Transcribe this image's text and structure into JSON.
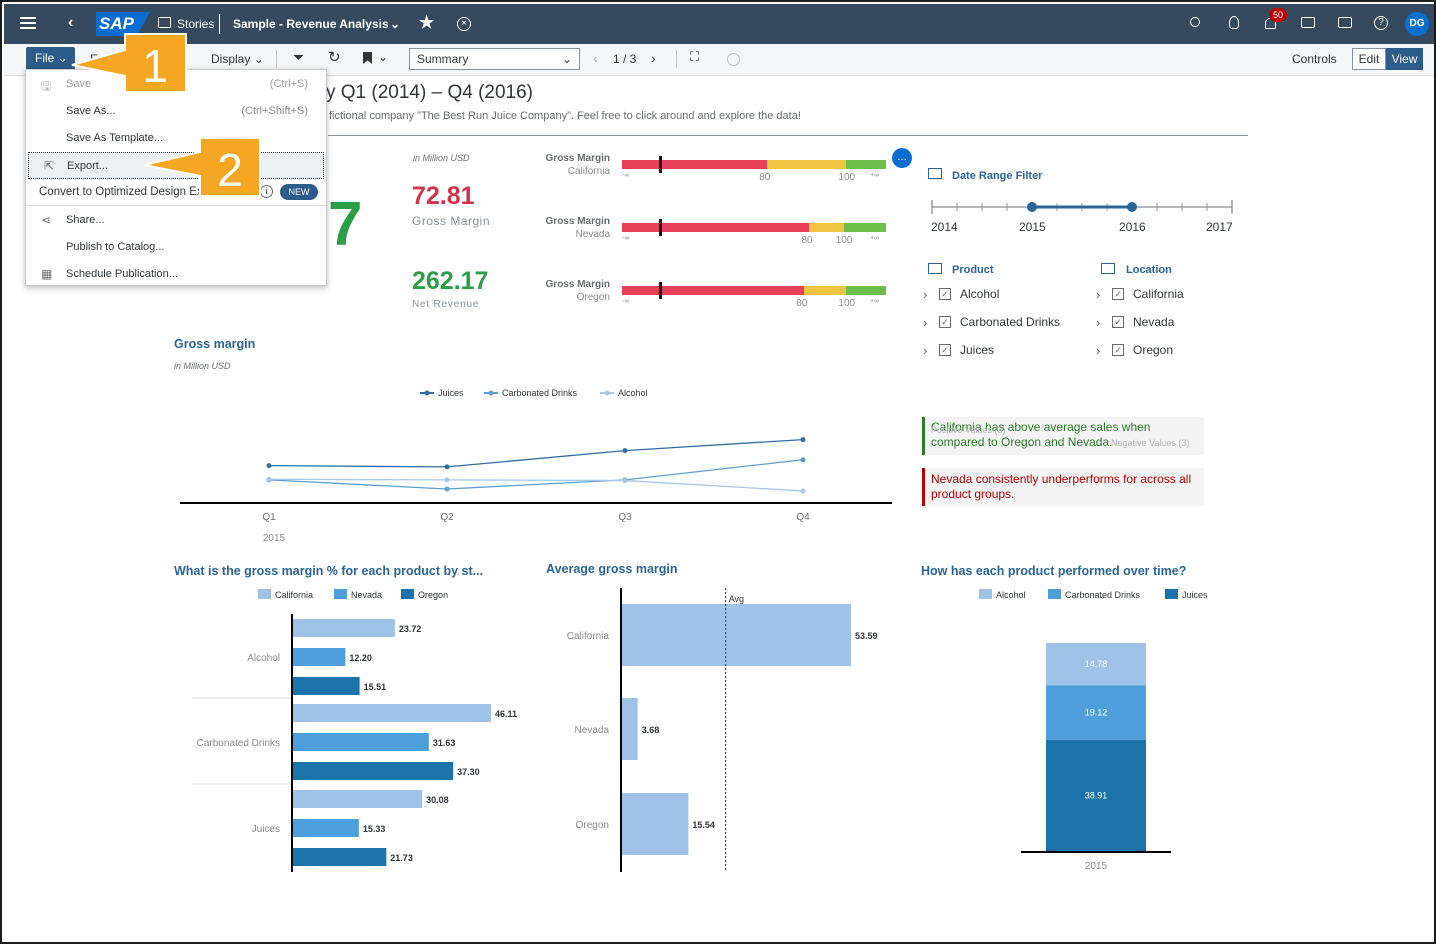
{
  "shell": {
    "logo": "SAP",
    "stories_label": "Stories",
    "story_title": "Sample - Revenue Analysis",
    "notification_count": "50",
    "avatar_initials": "DG"
  },
  "toolbar": {
    "file_label": "File",
    "edit_partial": "E",
    "display_label": "Display",
    "page_select_value": "Summary",
    "page_counter": "1 / 3",
    "controls_label": "Controls",
    "edit_label": "Edit",
    "view_label": "View"
  },
  "file_menu": {
    "items": [
      {
        "label": "Save",
        "shortcut": "(Ctrl+S)",
        "icon": "save-icon"
      },
      {
        "label": "Save As...",
        "shortcut": "(Ctrl+Shift+S)"
      },
      {
        "label": "Save As Template..."
      },
      {
        "label": "Export...",
        "icon": "export-icon"
      },
      {
        "label": "Convert to Optimized Design Ex",
        "badge": "NEW",
        "icon": "info-icon"
      },
      {
        "label": "Share...",
        "icon": "share-icon"
      },
      {
        "label": "Publish to Catalog..."
      },
      {
        "label": "Schedule Publication...",
        "icon": "schedule-icon"
      }
    ]
  },
  "callouts": {
    "one": "1",
    "two": "2"
  },
  "story": {
    "title_partial": "y Q1 (2014) – Q4 (2016)",
    "subtitle_partial": "fictional company \"The Best Run Juice Company\". Feel free to click around and explore the data!",
    "big_number_partial": "7"
  },
  "kpis": {
    "unit": "in Million USD",
    "gross_margin_value": "72.81",
    "gross_margin_label": "Gross Margin",
    "net_revenue_value": "262.17",
    "net_revenue_label": "Net Revenue"
  },
  "bullets": [
    {
      "title": "Gross Margin",
      "region": "California",
      "ticks": [
        "-∞",
        "80",
        "100",
        "+∞"
      ],
      "red_end": 0.55,
      "yellow_end": 0.85,
      "marker": 0.14
    },
    {
      "title": "Gross Margin",
      "region": "Nevada",
      "ticks": [
        "-∞",
        "80",
        "100",
        "+∞"
      ],
      "red_end": 0.71,
      "yellow_end": 0.84,
      "marker": 0.14
    },
    {
      "title": "Gross Margin",
      "region": "Oregon",
      "ticks": [
        "-∞",
        "80",
        "100",
        "+∞"
      ],
      "red_end": 0.69,
      "yellow_end": 0.85,
      "marker": 0.14
    }
  ],
  "filters": {
    "date_range_title": "Date Range Filter",
    "years": [
      "2014",
      "2015",
      "2016",
      "2017"
    ],
    "selected_range": [
      "2015",
      "2016"
    ],
    "product_title": "Product",
    "products": [
      "Alcohol",
      "Carbonated Drinks",
      "Juices"
    ],
    "location_title": "Location",
    "locations": [
      "California",
      "Nevada",
      "Oregon"
    ]
  },
  "insights": [
    {
      "text": "California has above average sales when compared to Oregon and Nevada.",
      "overlap_a": "Positive Values (3)",
      "overlap_b": "Negative Values (3)",
      "color": "#2b7d2b"
    },
    {
      "text": "Nevada consistently underperforms for across all product groups.",
      "color": "#bb0000"
    }
  ],
  "gm_line": {
    "title": "Gross margin",
    "unit": "in Million USD",
    "legend": [
      "Juices",
      "Carbonated Drinks",
      "Alcohol"
    ],
    "x_labels": [
      "Q1",
      "Q2",
      "Q3",
      "Q4"
    ],
    "year_label": "2015"
  },
  "chart_data": [
    {
      "type": "line",
      "title": "Gross margin",
      "x": [
        "Q1",
        "Q2",
        "Q3",
        "Q4"
      ],
      "series": [
        {
          "name": "Juices",
          "values": [
            8.1,
            7.9,
            10.4,
            12.1
          ],
          "color": "#2f6fa6"
        },
        {
          "name": "Carbonated Drinks",
          "values": [
            5.9,
            4.5,
            5.9,
            9.0
          ],
          "color": "#5a9fd4"
        },
        {
          "name": "Alcohol",
          "values": [
            6.0,
            5.9,
            5.8,
            4.2
          ],
          "color": "#a6c8e8"
        }
      ],
      "ylim": [
        0,
        14
      ]
    },
    {
      "type": "bar",
      "title": "What is the gross margin % for each product by st...",
      "categories": [
        "Alcohol",
        "Carbonated Drinks",
        "Juices"
      ],
      "series": [
        {
          "name": "California",
          "values": [
            23.72,
            46.11,
            30.08
          ],
          "color": "#9ec3e6"
        },
        {
          "name": "Nevada",
          "values": [
            12.2,
            31.63,
            15.33
          ],
          "color": "#4c9fd9"
        },
        {
          "name": "Oregon",
          "values": [
            15.51,
            37.3,
            21.73
          ],
          "color": "#1c73aa"
        }
      ],
      "value_labels": [
        [
          "23.72",
          "12.20",
          "15.51"
        ],
        [
          "46.11",
          "31.63",
          "37.30"
        ],
        [
          "30.08",
          "15.33",
          "21.73"
        ]
      ],
      "xlim": [
        0,
        50
      ]
    },
    {
      "type": "bar",
      "title": "Average gross margin",
      "categories": [
        "California",
        "Nevada",
        "Oregon"
      ],
      "values": [
        53.59,
        3.68,
        15.54
      ],
      "value_labels": [
        "53.59",
        "3.68",
        "15.54"
      ],
      "reference_line": {
        "label": "Avg",
        "value": 24.27
      },
      "xlim": [
        0,
        55
      ],
      "color": "#9ec3e6"
    },
    {
      "type": "bar",
      "title": "How has each product performed over time?",
      "categories": [
        "2015"
      ],
      "series": [
        {
          "name": "Alcohol",
          "values": [
            14.78
          ],
          "color": "#9ec3e6"
        },
        {
          "name": "Carbonated Drinks",
          "values": [
            19.12
          ],
          "color": "#4c9fd9"
        },
        {
          "name": "Juices",
          "values": [
            38.91
          ],
          "color": "#1c73aa"
        }
      ],
      "value_labels": [
        "14.78",
        "19.12",
        "38.91"
      ],
      "ylim": [
        0,
        75
      ]
    }
  ]
}
